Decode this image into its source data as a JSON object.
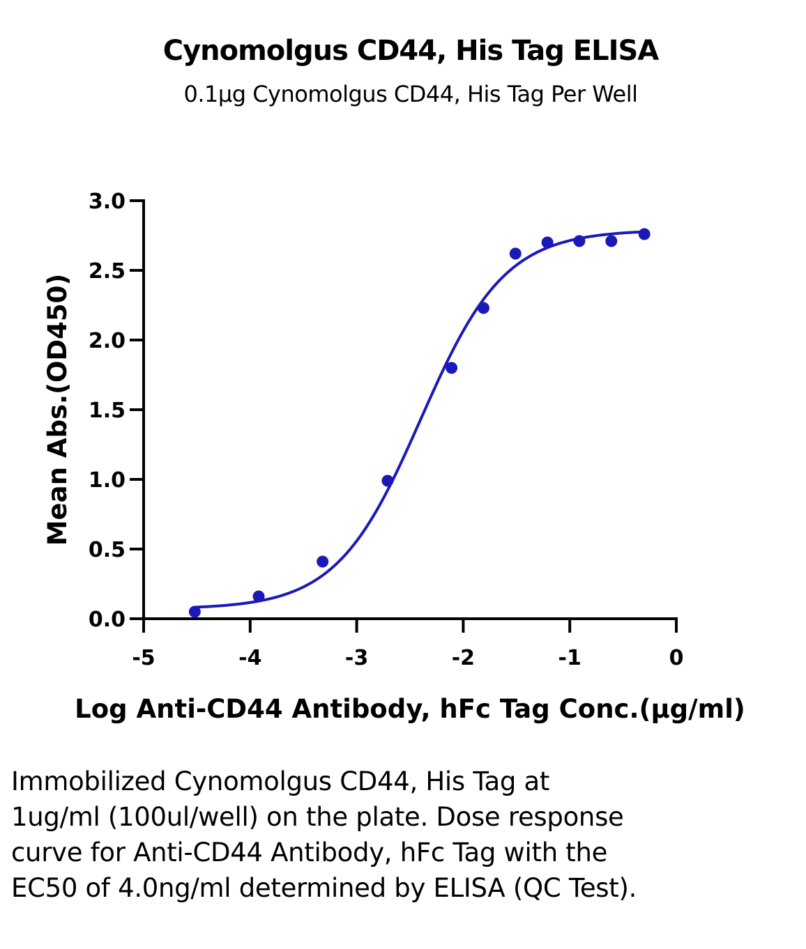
{
  "chart_data": {
    "type": "scatter",
    "title": "Cynomolgus CD44, His Tag ELISA",
    "subtitle": "0.1μg Cynomolgus CD44, His Tag Per Well",
    "xlabel": "Log Anti-CD44 Antibody, hFc Tag Conc.(μg/ml)",
    "ylabel": "Mean Abs.(OD450)",
    "xlim": [
      -5,
      0
    ],
    "ylim": [
      0,
      3
    ],
    "x_ticks": [
      "-5",
      "-4",
      "-3",
      "-2",
      "-1",
      "0"
    ],
    "y_ticks": [
      "0.0",
      "0.5",
      "1.0",
      "1.5",
      "2.0",
      "2.5",
      "3.0"
    ],
    "grid": false,
    "color": "#1a1ab8",
    "points": {
      "x": [
        -4.52,
        -3.92,
        -3.32,
        -2.71,
        -2.11,
        -1.81,
        -1.51,
        -1.21,
        -0.91,
        -0.61,
        -0.3
      ],
      "y": [
        0.05,
        0.16,
        0.41,
        0.99,
        1.8,
        2.23,
        2.62,
        2.7,
        2.71,
        2.71,
        2.76
      ]
    },
    "fit_curve": {
      "model": "4PL",
      "bottom": 0.07,
      "top": 2.79,
      "log_ec50": -2.4,
      "hill": 1.1,
      "x_range": [
        -4.52,
        -0.3
      ]
    }
  },
  "caption": "Immobilized Cynomolgus CD44, His Tag at 1ug/ml (100ul/well) on the plate. Dose response curve for Anti-CD44 Antibody, hFc Tag with the EC50 of 4.0ng/ml determined by ELISA (QC Test)."
}
